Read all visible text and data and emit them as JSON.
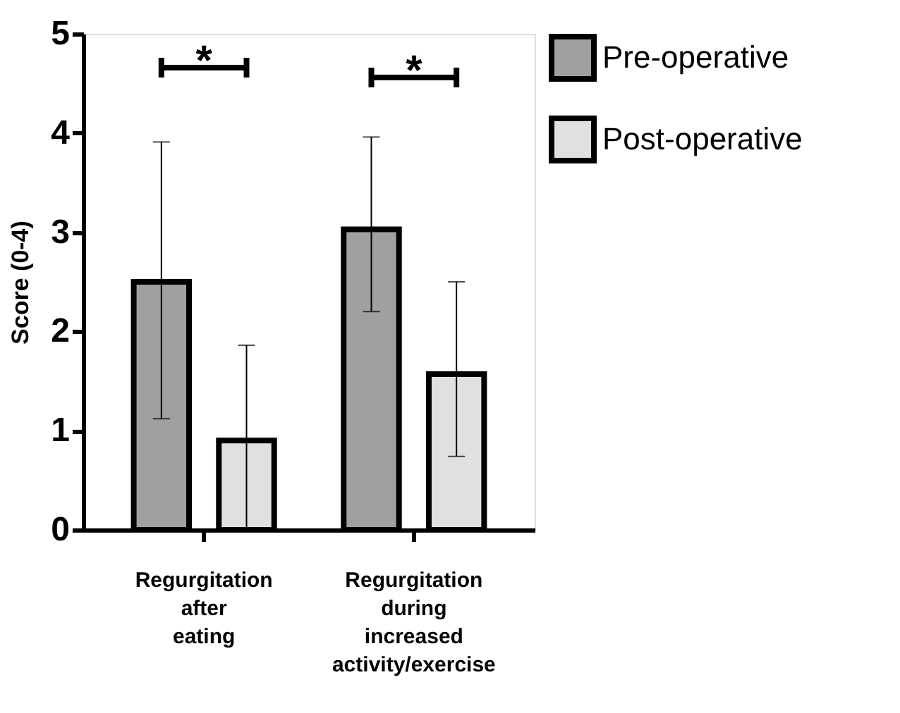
{
  "chart_data": {
    "type": "bar",
    "ylabel": "Score (0-4)",
    "categories": [
      "Regurgitation\nafter\neating",
      "Regurgitation\nduring\nincreased\nactivity/exercise"
    ],
    "series": [
      {
        "name": "Pre-operative",
        "color": "#a0a0a0",
        "values": [
          2.5,
          3.03
        ],
        "errors": [
          [
            1.12,
            3.91
          ],
          [
            2.2,
            3.96
          ]
        ]
      },
      {
        "name": "Post-operative",
        "color": "#e0e0e0",
        "values": [
          0.9,
          1.57
        ],
        "errors": [
          [
            0,
            1.86
          ],
          [
            0.74,
            2.5
          ]
        ]
      }
    ],
    "ylim": [
      0,
      5
    ],
    "yticks": [
      0,
      1,
      2,
      3,
      4,
      5
    ],
    "grid": false,
    "legend": "top right",
    "annotations": [
      "*",
      "*"
    ]
  }
}
